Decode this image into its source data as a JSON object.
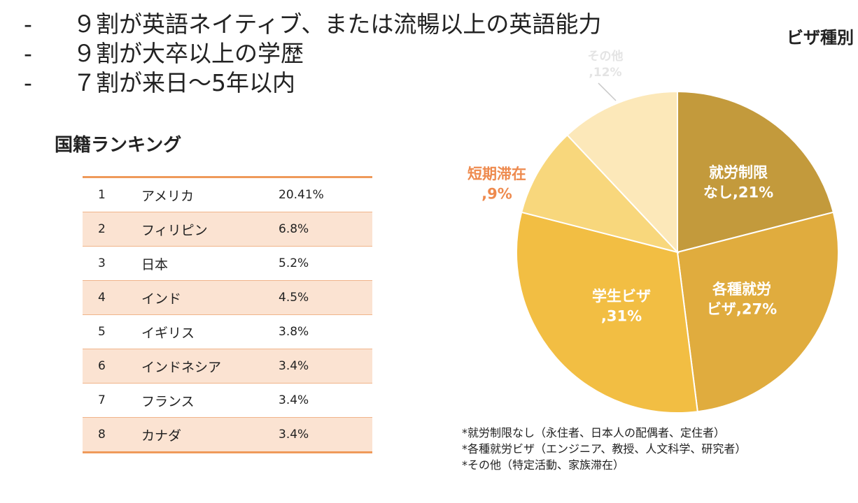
{
  "bullets": [
    {
      "dash": "-",
      "text": "９割が英語ネイティブ、または流暢以上の英語能力"
    },
    {
      "dash": "-",
      "text": "９割が大卒以上の学歴"
    },
    {
      "dash": "-",
      "text": "７割が来日～5年以内"
    }
  ],
  "ranking": {
    "title": "国籍ランキング",
    "rows": [
      {
        "rank": "1",
        "country": "アメリカ",
        "pct": "20.41%"
      },
      {
        "rank": "2",
        "country": "フィリピン",
        "pct": "6.8%"
      },
      {
        "rank": "3",
        "country": "日本",
        "pct": "5.2%"
      },
      {
        "rank": "4",
        "country": "インド",
        "pct": "4.5%"
      },
      {
        "rank": "5",
        "country": "イギリス",
        "pct": "3.8%"
      },
      {
        "rank": "6",
        "country": "インドネシア",
        "pct": "3.4%"
      },
      {
        "rank": "7",
        "country": "フランス",
        "pct": "3.4%"
      },
      {
        "rank": "8",
        "country": "カナダ",
        "pct": "3.4%"
      }
    ]
  },
  "chart_data": {
    "type": "pie",
    "title": "ビザ種別",
    "slices": [
      {
        "label_lines": [
          "就労制限",
          "なし,21%"
        ],
        "name": "就労制限なし",
        "value": 21,
        "color": "#c39a3c",
        "label_color": "#ffffff"
      },
      {
        "label_lines": [
          "各種就労",
          "ビザ,27%"
        ],
        "name": "各種就労ビザ",
        "value": 27,
        "color": "#e0ac3e",
        "label_color": "#ffffff"
      },
      {
        "label_lines": [
          "学生ビザ",
          ",31%"
        ],
        "name": "学生ビザ",
        "value": 31,
        "color": "#f2be43",
        "label_color": "#ffffff"
      },
      {
        "label_lines": [
          "短期滞在",
          ",9%"
        ],
        "name": "短期滞在",
        "value": 9,
        "color": "#f8d77c",
        "label_color": "#ee8a4e"
      },
      {
        "label_lines": [
          "その他",
          ",12%"
        ],
        "name": "その他",
        "value": 12,
        "color": "#fce8b9",
        "label_color": "#e4e4e4"
      }
    ],
    "start_angle_deg": 0,
    "direction": "clockwise"
  },
  "notes": [
    "*就労制限なし（永住者、日本人の配偶者、定住者）",
    "*各種就労ビザ（エンジニア、教授、人文科学、研究者）",
    "*その他（特定活動、家族滞在）"
  ]
}
